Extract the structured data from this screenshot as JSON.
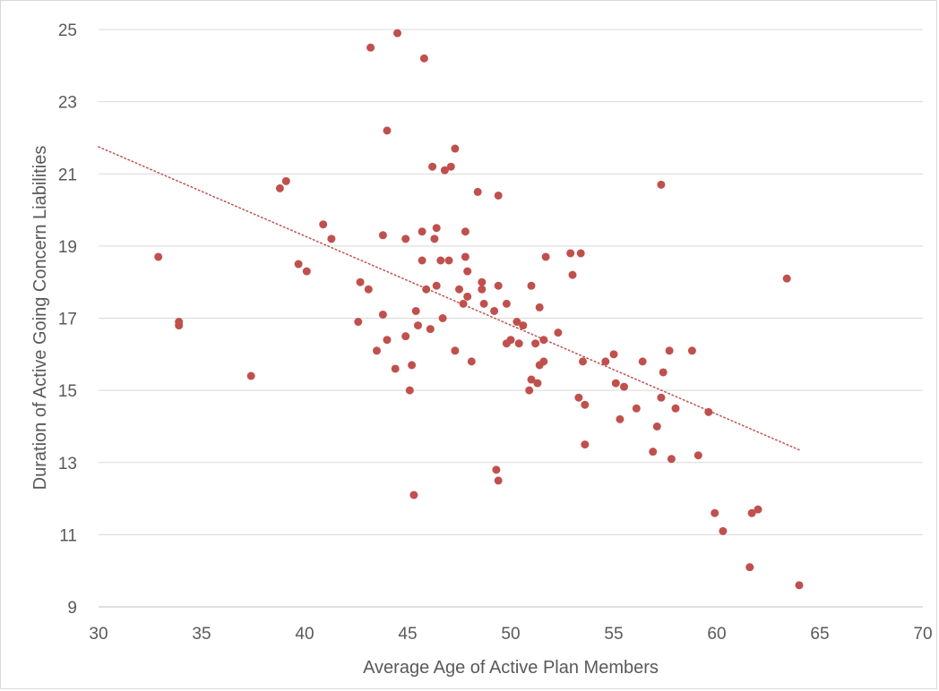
{
  "chart_data": {
    "type": "scatter",
    "title": "",
    "xlabel": "Average Age of Active Plan Members",
    "ylabel": "Duration of Active Going Concern Liabilities",
    "xlim": [
      30,
      70
    ],
    "ylim": [
      9,
      25
    ],
    "x_ticks": [
      30,
      35,
      40,
      45,
      50,
      55,
      60,
      65,
      70
    ],
    "y_ticks": [
      9,
      11,
      13,
      15,
      17,
      19,
      21,
      23,
      25
    ],
    "grid": "horizontal",
    "legend": "none",
    "marker_color": "#c0504d",
    "trendline": {
      "type": "linear",
      "style": "dotted",
      "color": "#c0504d",
      "x_range": [
        30,
        64
      ],
      "y_values": [
        21.75,
        13.35
      ]
    },
    "points": [
      [
        32.9,
        18.7
      ],
      [
        33.9,
        16.9
      ],
      [
        33.9,
        16.8
      ],
      [
        37.4,
        15.4
      ],
      [
        38.8,
        20.6
      ],
      [
        39.1,
        20.8
      ],
      [
        39.7,
        18.5
      ],
      [
        40.1,
        18.3
      ],
      [
        40.9,
        19.6
      ],
      [
        41.3,
        19.2
      ],
      [
        42.6,
        16.9
      ],
      [
        42.7,
        18.0
      ],
      [
        43.1,
        17.8
      ],
      [
        43.2,
        24.5
      ],
      [
        43.5,
        16.1
      ],
      [
        43.8,
        19.3
      ],
      [
        43.8,
        17.1
      ],
      [
        44.0,
        22.2
      ],
      [
        44.0,
        16.4
      ],
      [
        44.4,
        15.6
      ],
      [
        44.5,
        24.9
      ],
      [
        44.9,
        19.2
      ],
      [
        44.9,
        16.5
      ],
      [
        45.1,
        15.0
      ],
      [
        45.2,
        15.7
      ],
      [
        45.3,
        12.1
      ],
      [
        45.4,
        17.2
      ],
      [
        45.5,
        16.8
      ],
      [
        45.7,
        19.4
      ],
      [
        45.7,
        18.6
      ],
      [
        45.8,
        24.2
      ],
      [
        45.9,
        17.8
      ],
      [
        46.1,
        16.7
      ],
      [
        46.2,
        21.2
      ],
      [
        46.3,
        19.2
      ],
      [
        46.4,
        19.5
      ],
      [
        46.4,
        17.9
      ],
      [
        46.6,
        18.6
      ],
      [
        46.7,
        17.0
      ],
      [
        46.8,
        21.1
      ],
      [
        47.0,
        18.6
      ],
      [
        47.1,
        21.2
      ],
      [
        47.3,
        21.7
      ],
      [
        47.3,
        16.1
      ],
      [
        47.5,
        17.8
      ],
      [
        47.7,
        17.4
      ],
      [
        47.8,
        19.4
      ],
      [
        47.8,
        18.7
      ],
      [
        47.9,
        18.3
      ],
      [
        47.9,
        17.6
      ],
      [
        48.1,
        15.8
      ],
      [
        48.4,
        20.5
      ],
      [
        48.6,
        18.0
      ],
      [
        48.6,
        17.8
      ],
      [
        48.7,
        17.4
      ],
      [
        49.2,
        17.2
      ],
      [
        49.3,
        12.8
      ],
      [
        49.4,
        20.4
      ],
      [
        49.4,
        17.9
      ],
      [
        49.4,
        12.5
      ],
      [
        49.8,
        17.4
      ],
      [
        49.8,
        16.3
      ],
      [
        50.0,
        16.4
      ],
      [
        50.3,
        16.9
      ],
      [
        50.4,
        16.3
      ],
      [
        50.6,
        16.8
      ],
      [
        50.9,
        15.0
      ],
      [
        51.0,
        17.9
      ],
      [
        51.0,
        15.3
      ],
      [
        51.2,
        16.3
      ],
      [
        51.3,
        15.2
      ],
      [
        51.4,
        17.3
      ],
      [
        51.4,
        15.7
      ],
      [
        51.6,
        16.4
      ],
      [
        51.6,
        15.8
      ],
      [
        51.7,
        18.7
      ],
      [
        52.3,
        16.6
      ],
      [
        52.9,
        18.8
      ],
      [
        53.0,
        18.2
      ],
      [
        53.3,
        14.8
      ],
      [
        53.4,
        18.8
      ],
      [
        53.5,
        15.8
      ],
      [
        53.6,
        14.6
      ],
      [
        53.6,
        13.5
      ],
      [
        54.6,
        15.8
      ],
      [
        55.0,
        16.0
      ],
      [
        55.1,
        15.2
      ],
      [
        55.3,
        14.2
      ],
      [
        55.5,
        15.1
      ],
      [
        56.1,
        14.5
      ],
      [
        56.4,
        15.8
      ],
      [
        56.9,
        13.3
      ],
      [
        57.1,
        14.0
      ],
      [
        57.3,
        20.7
      ],
      [
        57.3,
        14.8
      ],
      [
        57.4,
        15.5
      ],
      [
        57.7,
        16.1
      ],
      [
        57.8,
        13.1
      ],
      [
        58.0,
        14.5
      ],
      [
        58.8,
        16.1
      ],
      [
        59.1,
        13.2
      ],
      [
        59.6,
        14.4
      ],
      [
        59.9,
        11.6
      ],
      [
        60.3,
        11.1
      ],
      [
        61.6,
        10.1
      ],
      [
        61.7,
        11.6
      ],
      [
        62.0,
        11.7
      ],
      [
        63.4,
        18.1
      ],
      [
        64.0,
        9.6
      ]
    ]
  }
}
